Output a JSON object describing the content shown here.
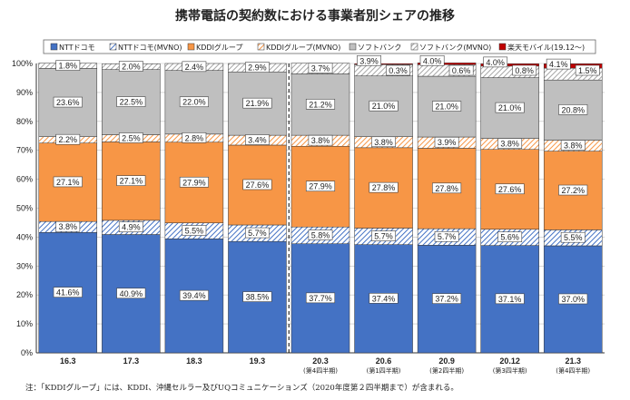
{
  "chart_data": {
    "type": "bar",
    "stacked": true,
    "title": "携帯電話の契約数における事業者別シェアの推移",
    "categories": [
      "16.3",
      "17.3",
      "18.3",
      "19.3",
      "20.3",
      "20.6",
      "20.9",
      "20.12",
      "21.3"
    ],
    "category_sublabels": [
      "",
      "",
      "",
      "",
      "(第4四半期)",
      "(第1四半期)",
      "(第2四半期)",
      "(第3四半期)",
      "(第4四半期)"
    ],
    "ylim": [
      0,
      100
    ],
    "yticks": [
      "0%",
      "10%",
      "20%",
      "30%",
      "40%",
      "50%",
      "60%",
      "70%",
      "80%",
      "90%",
      "100%"
    ],
    "legend_position": "top",
    "divider_after_index": 3,
    "series": [
      {
        "name": "NTTドコモ",
        "color": "#4472c4",
        "pattern": "solid",
        "values": [
          41.6,
          40.9,
          39.4,
          38.5,
          37.7,
          37.4,
          37.2,
          37.1,
          37.0
        ],
        "labels": [
          "41.6%",
          "40.9%",
          "39.4%",
          "38.5%",
          "37.7%",
          "37.4%",
          "37.2%",
          "37.1%",
          "37.0%"
        ]
      },
      {
        "name": "NTTドコモ(MVNO)",
        "color": "#4472c4",
        "pattern": "hatch",
        "values": [
          3.8,
          4.9,
          5.5,
          5.7,
          5.8,
          5.7,
          5.7,
          5.6,
          5.5
        ],
        "labels": [
          "3.8%",
          "4.9%",
          "5.5%",
          "5.7%",
          "5.8%",
          "5.7%",
          "5.7%",
          "5.6%",
          "5.5%"
        ]
      },
      {
        "name": "KDDIグループ",
        "color": "#f79646",
        "pattern": "solid",
        "values": [
          27.1,
          27.1,
          27.9,
          27.6,
          27.9,
          27.8,
          27.8,
          27.6,
          27.2
        ],
        "labels": [
          "27.1%",
          "27.1%",
          "27.9%",
          "27.6%",
          "27.9%",
          "27.8%",
          "27.8%",
          "27.6%",
          "27.2%"
        ]
      },
      {
        "name": "KDDIグループ(MVNO)",
        "color": "#f79646",
        "pattern": "hatch",
        "values": [
          2.2,
          2.5,
          2.8,
          3.4,
          3.8,
          3.8,
          3.9,
          3.8,
          3.8
        ],
        "labels": [
          "2.2%",
          "2.5%",
          "2.8%",
          "3.4%",
          "3.8%",
          "3.8%",
          "3.9%",
          "3.8%",
          "3.8%"
        ]
      },
      {
        "name": "ソフトバンク",
        "color": "#bfbfbf",
        "pattern": "solid",
        "values": [
          23.6,
          22.5,
          22.0,
          21.9,
          21.2,
          21.0,
          21.0,
          21.0,
          20.8
        ],
        "labels": [
          "23.6%",
          "22.5%",
          "22.0%",
          "21.9%",
          "21.2%",
          "21.0%",
          "21.0%",
          "21.0%",
          "20.8%"
        ]
      },
      {
        "name": "ソフトバンク(MVNO)",
        "color": "#bfbfbf",
        "pattern": "hatch",
        "values": [
          1.8,
          2.0,
          2.4,
          2.9,
          3.7,
          3.9,
          4.0,
          4.0,
          4.1
        ],
        "labels": [
          "1.8%",
          "2.0%",
          "2.4%",
          "2.9%",
          "3.7%",
          "3.9%",
          "4.0%",
          "4.0%",
          "4.1%"
        ]
      },
      {
        "name": "楽天モバイル(19.12〜)",
        "color": "#c00000",
        "pattern": "solid",
        "values": [
          0,
          0,
          0,
          0,
          0,
          0.3,
          0.6,
          0.8,
          1.5
        ],
        "labels": [
          "",
          "",
          "",
          "",
          "",
          "0.3%",
          "0.6%",
          "0.8%",
          "1.5%"
        ]
      }
    ]
  },
  "footnote": "注：「KDDIグループ」には、KDDI、沖縄セルラー及びUQコミュニケーションズ（2020年度第２四半期まで）が含まれる。"
}
